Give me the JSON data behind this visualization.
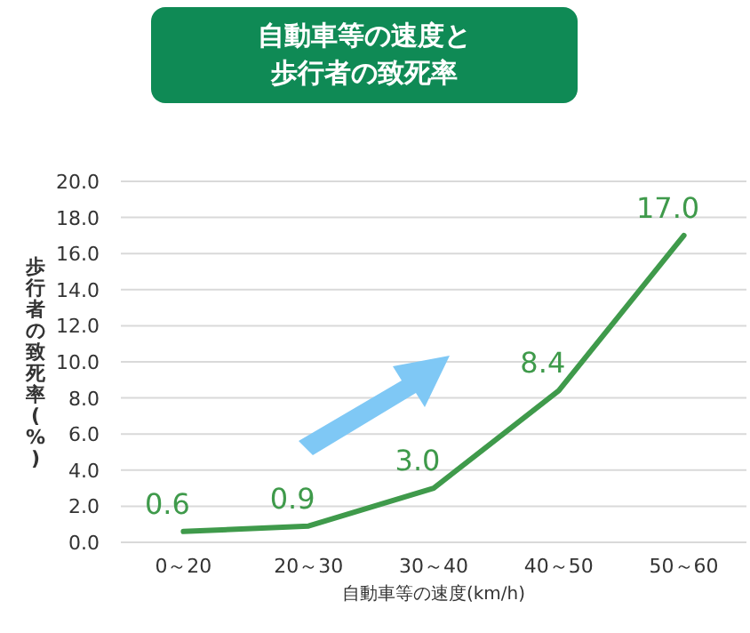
{
  "chart_data": {
    "type": "line",
    "title": "自動車等の速度と歩行者の致死率",
    "xlabel": "自動車等の速度(km/h)",
    "ylabel": "歩行者の致死率(%)",
    "categories": [
      "0～20",
      "20～30",
      "30～40",
      "40～50",
      "50～60"
    ],
    "series": [
      {
        "color": "#3f9a4b",
        "values": [
          0.6,
          0.9,
          3.0,
          8.4,
          17.0
        ]
      }
    ],
    "value_labels": [
      "0.6",
      "0.9",
      "3.0",
      "8.4",
      "17.0"
    ],
    "ylim": [
      0,
      20
    ],
    "yticks": [
      {
        "value": 0,
        "label": "0.0"
      },
      {
        "value": 2,
        "label": "2.0"
      },
      {
        "value": 4,
        "label": "4.0"
      },
      {
        "value": 6,
        "label": "6.0"
      },
      {
        "value": 8,
        "label": "8.0"
      },
      {
        "value": 10,
        "label": "10.0"
      },
      {
        "value": 12,
        "label": "12.0"
      },
      {
        "value": 14,
        "label": "14.0"
      },
      {
        "value": 16,
        "label": "16.0"
      },
      {
        "value": 18,
        "label": "18.0"
      },
      {
        "value": 20,
        "label": "20.0"
      }
    ],
    "grid": "y",
    "marker": "none",
    "line_style": "solid"
  }
}
